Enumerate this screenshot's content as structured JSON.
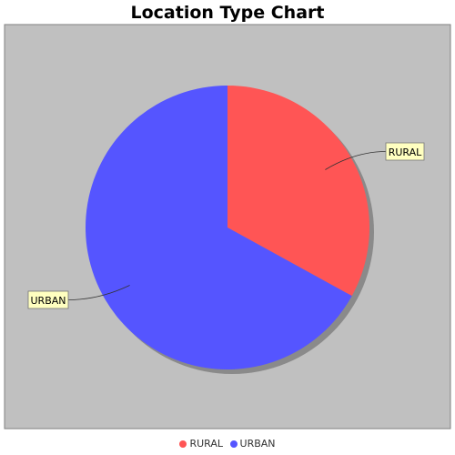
{
  "chart_data": {
    "type": "pie",
    "title": "Location Type Chart",
    "slices": [
      {
        "label": "RURAL",
        "value": 33,
        "color": "#ff5555"
      },
      {
        "label": "URBAN",
        "value": 67,
        "color": "#5555ff"
      }
    ],
    "plot_background": "#c0c0c0",
    "legend_position": "bottom"
  }
}
